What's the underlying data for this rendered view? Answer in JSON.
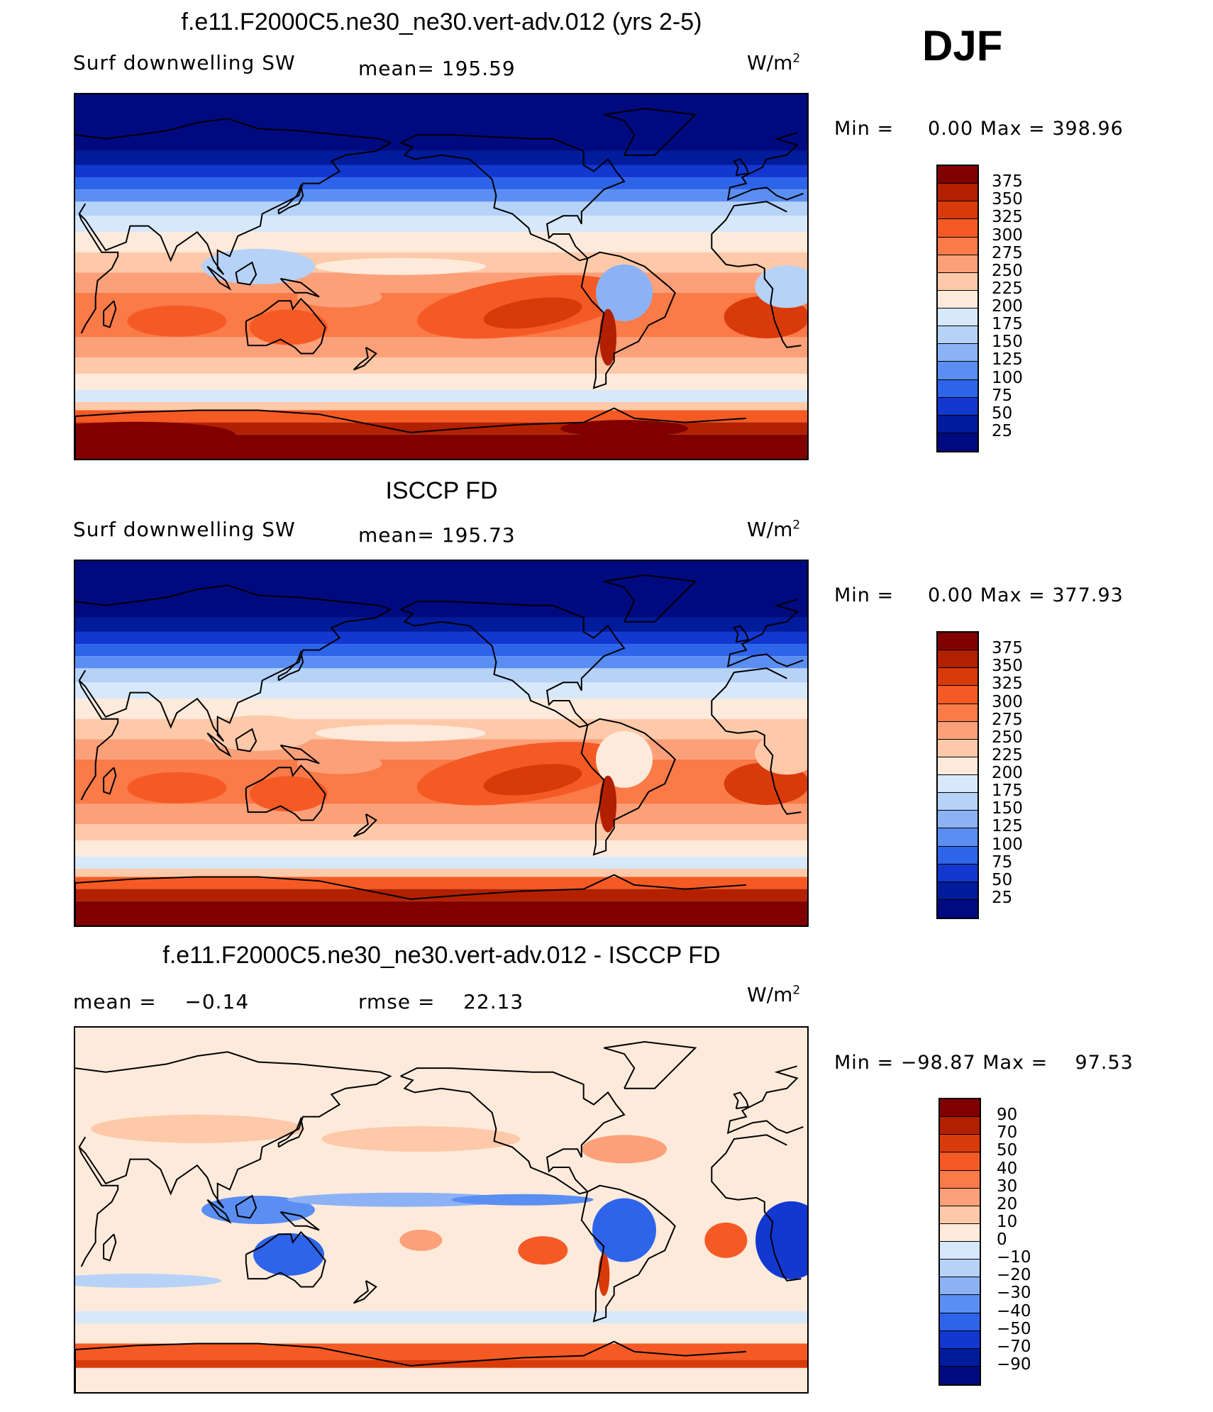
{
  "season": "DJF",
  "panels": [
    {
      "title": "f.e11.F2000C5.ne30_ne30.vert-adv.012 (yrs 2-5)",
      "left_label": "Surf downwelling SW",
      "center_label": "mean= 195.59",
      "units_base": "W/m",
      "units_exp": "2",
      "minmax": "Min =     0.00 Max = 398.96",
      "colorbar_levels": [
        "375",
        "350",
        "325",
        "300",
        "275",
        "250",
        "225",
        "200",
        "175",
        "150",
        "125",
        "100",
        "75",
        "50",
        "25"
      ],
      "field": "model"
    },
    {
      "title": "ISCCP FD",
      "left_label": "Surf downwelling SW",
      "center_label": "mean= 195.73",
      "units_base": "W/m",
      "units_exp": "2",
      "minmax": "Min =     0.00 Max = 377.93",
      "colorbar_levels": [
        "375",
        "350",
        "325",
        "300",
        "275",
        "250",
        "225",
        "200",
        "175",
        "150",
        "125",
        "100",
        "75",
        "50",
        "25"
      ],
      "field": "obs"
    },
    {
      "title": "f.e11.F2000C5.ne30_ne30.vert-adv.012 - ISCCP FD",
      "left_label": "mean =    −0.14",
      "center_label": "rmse =    22.13",
      "units_base": "W/m",
      "units_exp": "2",
      "minmax": "Min = −98.87 Max =    97.53",
      "colorbar_levels": [
        "90",
        "70",
        "50",
        "40",
        "30",
        "20",
        "10",
        "0",
        "−10",
        "−20",
        "−30",
        "−40",
        "−50",
        "−70",
        "−90"
      ],
      "field": "diff"
    }
  ],
  "colors": {
    "scale": [
      "#800000",
      "#b22000",
      "#d93a0a",
      "#f55a25",
      "#fa7a48",
      "#fca07a",
      "#fdc9a8",
      "#fdeadb",
      "#d6e8fa",
      "#b6d2f7",
      "#8cb2f5",
      "#5a8ef2",
      "#2e64ea",
      "#1238d0",
      "#001b9c",
      "#000a80"
    ],
    "coast": "#000000"
  }
}
